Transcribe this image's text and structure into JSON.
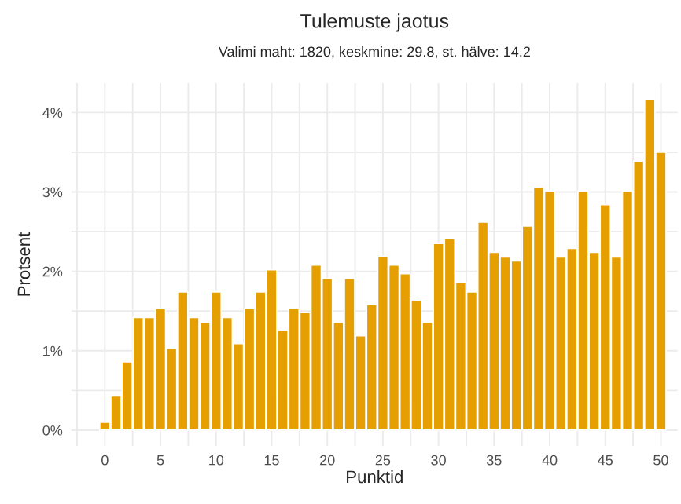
{
  "chart_data": {
    "type": "bar",
    "title": "Tulemuste jaotus",
    "subtitle": "Valimi maht: 1820, keskmine: 29.8, st. hälve: 14.2",
    "xlabel": "Punktid",
    "ylabel": "Protsent",
    "x": [
      0,
      1,
      2,
      3,
      4,
      5,
      6,
      7,
      8,
      9,
      10,
      11,
      12,
      13,
      14,
      15,
      16,
      17,
      18,
      19,
      20,
      21,
      22,
      23,
      24,
      25,
      26,
      27,
      28,
      29,
      30,
      31,
      32,
      33,
      34,
      35,
      36,
      37,
      38,
      39,
      40,
      41,
      42,
      43,
      44,
      45,
      46,
      47,
      48,
      49,
      50
    ],
    "values": [
      0.1,
      0.43,
      0.86,
      1.42,
      1.42,
      1.53,
      1.03,
      1.74,
      1.42,
      1.36,
      1.74,
      1.42,
      1.09,
      1.53,
      1.74,
      2.02,
      1.26,
      1.53,
      1.48,
      2.08,
      1.91,
      1.36,
      1.91,
      1.19,
      1.58,
      2.19,
      2.08,
      1.97,
      1.64,
      1.36,
      2.35,
      2.41,
      1.86,
      1.74,
      2.62,
      2.24,
      2.18,
      2.13,
      2.57,
      3.06,
      3.01,
      2.18,
      2.29,
      3.01,
      2.24,
      2.84,
      2.18,
      3.01,
      3.39,
      4.16,
      3.5
    ],
    "color": "#e69f00",
    "xlim": [
      -3,
      51.5
    ],
    "xticks": [
      {
        "value": -2.5,
        "label": null
      },
      0,
      {
        "value": 2.5,
        "label": null
      },
      5,
      {
        "value": 7.5,
        "label": null
      },
      10,
      {
        "value": 12.5,
        "label": null
      },
      15,
      {
        "value": 17.5,
        "label": null
      },
      20,
      {
        "value": 22.5,
        "label": null
      },
      25,
      {
        "value": 27.5,
        "label": null
      },
      30,
      {
        "value": 32.5,
        "label": null
      },
      35,
      {
        "value": 37.5,
        "label": null
      },
      40,
      {
        "value": 42.5,
        "label": null
      },
      45,
      {
        "value": 47.5,
        "label": null
      },
      50
    ],
    "ylim": [
      -0.2,
      4.37
    ],
    "yticks": [
      {
        "value": 0,
        "label": "0%"
      },
      {
        "value": 0.5,
        "label": null
      },
      {
        "value": 1,
        "label": "1%"
      },
      {
        "value": 1.5,
        "label": null
      },
      {
        "value": 2,
        "label": "2%"
      },
      {
        "value": 2.5,
        "label": null
      },
      {
        "value": 3,
        "label": "3%"
      },
      {
        "value": 3.5,
        "label": null
      },
      {
        "value": 4,
        "label": "4%"
      }
    ],
    "grid": true
  }
}
